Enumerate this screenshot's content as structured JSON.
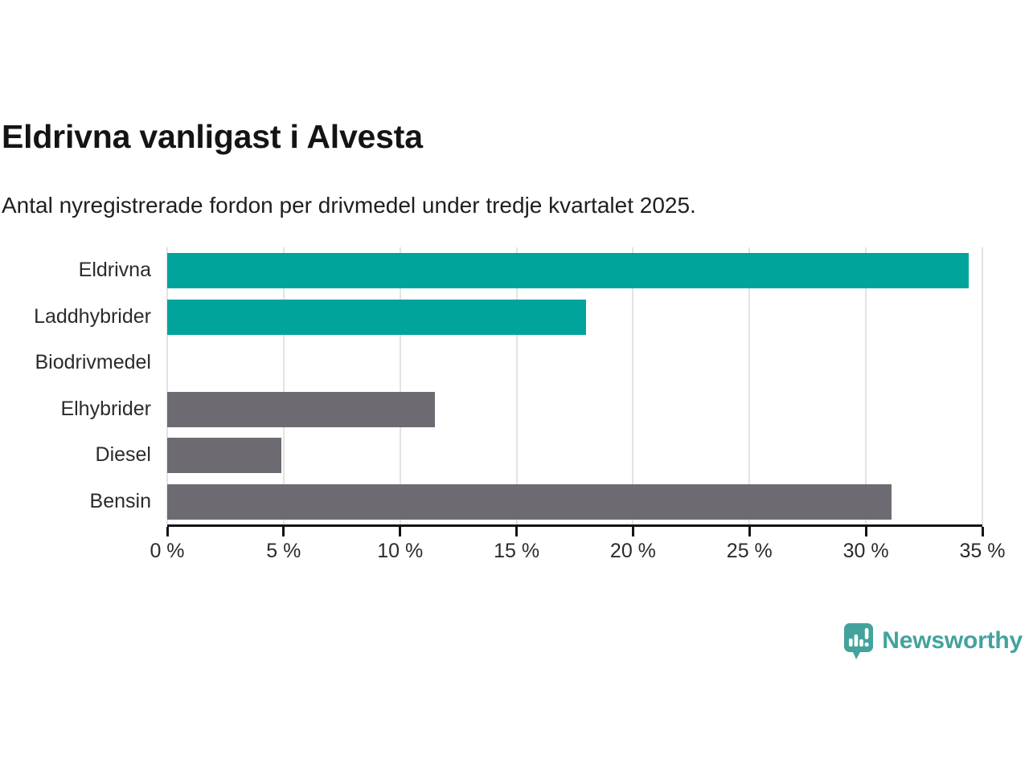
{
  "header": {
    "title": "Eldrivna vanligast i Alvesta",
    "subtitle": "Antal nyregistrerade fordon per drivmedel under tredje kvartalet 2025."
  },
  "chart_data": {
    "type": "bar",
    "orientation": "horizontal",
    "categories": [
      "Eldrivna",
      "Laddhybrider",
      "Biodrivmedel",
      "Elhybrider",
      "Diesel",
      "Bensin"
    ],
    "values": [
      34.4,
      18.0,
      0,
      11.5,
      4.9,
      31.1
    ],
    "bar_colors": [
      "#00a49c",
      "#00a49c",
      "#6e6a72",
      "#6e6a72",
      "#6e6a72",
      "#6e6a72"
    ],
    "title": "Eldrivna vanligast i Alvesta",
    "subtitle": "Antal nyregistrerade fordon per drivmedel under tredje kvartalet 2025.",
    "xlabel": "",
    "ylabel": "",
    "xlim": [
      0,
      35
    ],
    "x_tick_values": [
      0,
      5,
      10,
      15,
      20,
      25,
      30,
      35
    ],
    "x_tick_labels": [
      "0 %",
      "5 %",
      "10 %",
      "15 %",
      "20 %",
      "25 %",
      "30 %",
      "35 %"
    ],
    "grid": true,
    "legend": false
  },
  "colors": {
    "highlight_teal": "#00a49c",
    "neutral_gray": "#6e6a72",
    "gridline": "#e3e3e3",
    "axis": "#141414",
    "text": "#2b2b2b",
    "brand_teal": "#43a39c"
  },
  "branding": {
    "logo_text": "Newsworthy",
    "logo_icon": "newsworthy-speech-bubble-barchart-icon"
  }
}
